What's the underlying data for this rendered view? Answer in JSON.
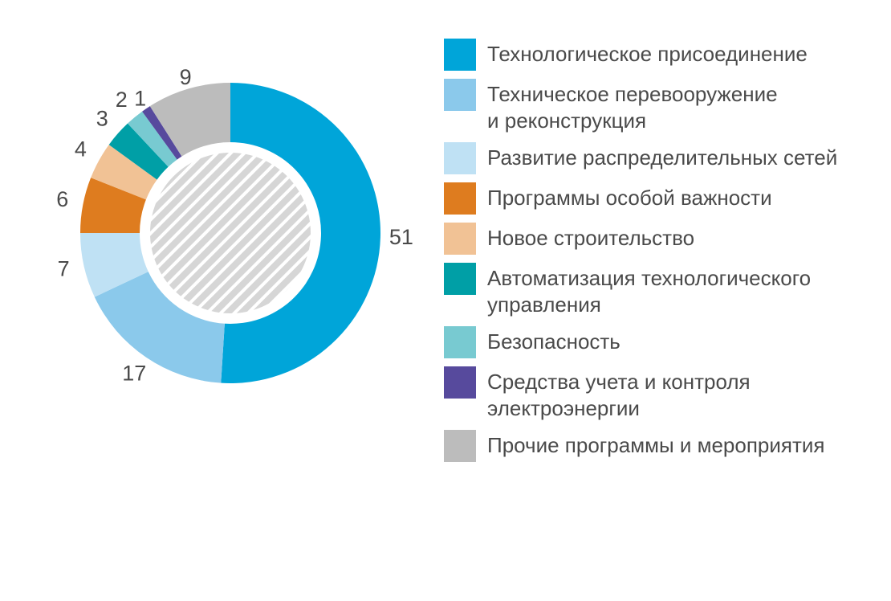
{
  "chart_data": {
    "type": "donut",
    "categories": [
      "Технологическое присоединение",
      "Техническое перевооружение\nи реконструкция",
      "Развитие распределительных сетей",
      "Программы особой важности",
      "Новое строительство",
      "Автоматизация технологического\nуправления",
      "Безопасность",
      "Средства учета и контроля\nэлектроэнергии",
      "Прочие программы и мероприятия"
    ],
    "values": [
      51,
      17,
      7,
      6,
      4,
      3,
      2,
      1,
      9
    ],
    "colors": [
      "#00a5d9",
      "#8bc9eb",
      "#bfe1f4",
      "#de7c1f",
      "#f1c295",
      "#009fa6",
      "#78cad1",
      "#574a9d",
      "#bcbcbc"
    ]
  }
}
